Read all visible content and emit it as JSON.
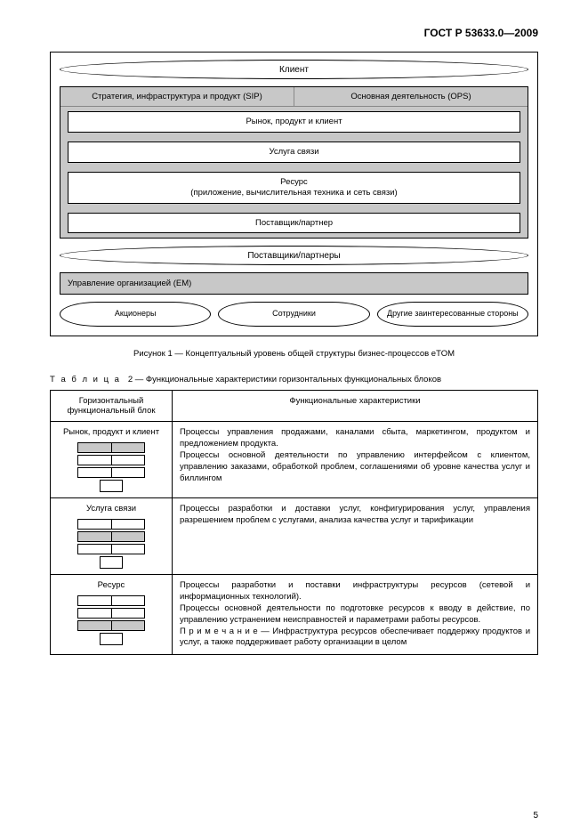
{
  "header": "ГОСТ Р 53633.0—2009",
  "diagram": {
    "top_ellipse": "Клиент",
    "frame_left": "Стратегия, инфраструктура и продукт (SIP)",
    "frame_right": "Основная деятельность (OPS)",
    "layer1": "Рынок, продукт и клиент",
    "layer2": "Услуга связи",
    "layer3_a": "Ресурс",
    "layer3_b": "(приложение, вычислительная техника и сеть связи)",
    "layer4": "Поставщик/партнер",
    "mid_ellipse": "Поставщики/партнеры",
    "em_box": "Управление организацией (ЕМ)",
    "stake1": "Акционеры",
    "stake2": "Сотрудники",
    "stake3": "Другие заинтересованные стороны"
  },
  "figure_caption": "Рисунок 1 — Концептуальный уровень общей структуры бизнес-процессов eTOM",
  "table_caption_prefix": "Т а б л и ц а",
  "table_caption_num": "2 — Функциональные характеристики горизонтальных функциональных блоков",
  "table": {
    "col1": "Горизонтальный функциональный блок",
    "col2": "Функциональные характеристики",
    "rows": [
      {
        "name": "Рынок, продукт и клиент",
        "hl": 0,
        "desc": "Процессы управления продажами, каналами сбыта, маркетингом, продуктом и предложением продукта.\nПроцессы основной деятельности по управлению интерфейсом с клиентом, управлению заказами, обработкой проблем, соглашениями об уровне качества услуг и биллингом"
      },
      {
        "name": "Услуга связи",
        "hl": 1,
        "desc": "Процессы разработки и доставки услуг, конфигурирования услуг, управления разрешением проблем с услугами, анализа качества услуг и тарификации"
      },
      {
        "name": "Ресурс",
        "hl": 2,
        "desc": "Процессы разработки и поставки инфраструктуры ресурсов (сетевой и информационных технологий).\nПроцессы основной деятельности по подготовке ресурсов к вводу в действие, по управлению устранением неисправностей и параметрами работы ресурсов.\nП р и м е ч а н и е — Инфраструктура ресурсов обеспечивает поддержку продуктов и услуг, а также поддерживает работу организации в целом"
      }
    ]
  },
  "page_number": "5",
  "colors": {
    "background": "#ffffff",
    "text": "#000000",
    "gray_fill": "#c8c8c8",
    "border": "#000000"
  }
}
